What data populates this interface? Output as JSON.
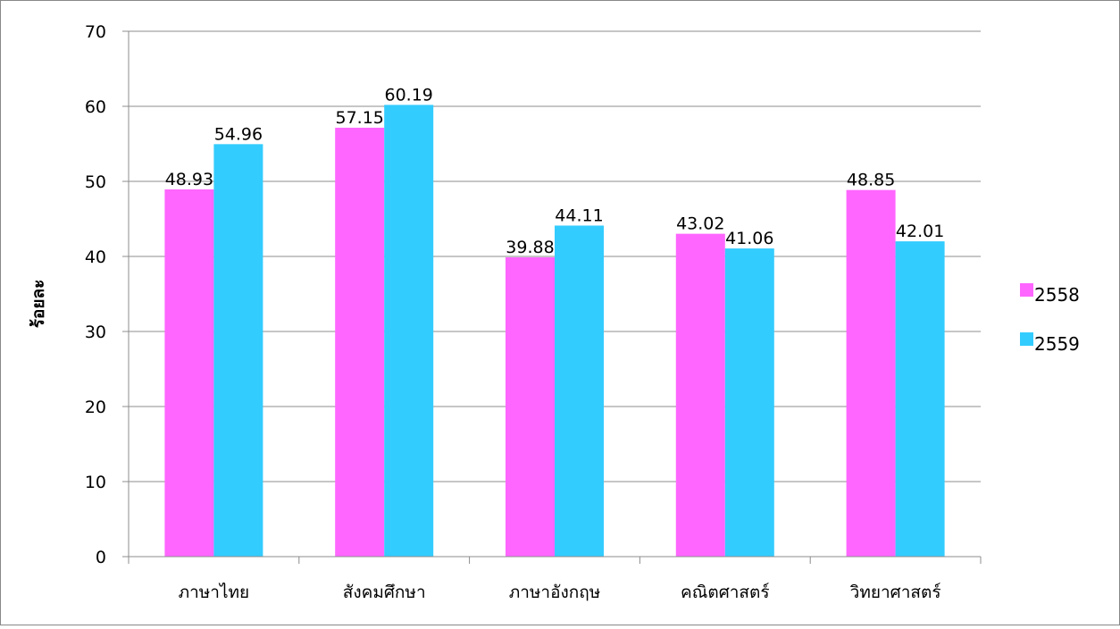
{
  "chart_data": {
    "type": "bar",
    "title": "",
    "xlabel": "",
    "ylabel": "ร้อยละ",
    "ylim": [
      0,
      70
    ],
    "yticks": [
      0,
      10,
      20,
      30,
      40,
      50,
      60,
      70
    ],
    "grid": true,
    "legend": "right",
    "categories": [
      "ภาษาไทย",
      "สังคมศึกษา",
      "ภาษาอังกฤษ",
      "คณิตศาสตร์",
      "วิทยาศาสตร์"
    ],
    "series": [
      {
        "name": "2558",
        "color": "#ff66ff",
        "values": [
          48.93,
          57.15,
          39.88,
          43.02,
          48.85
        ]
      },
      {
        "name": "2559",
        "color": "#33ccff",
        "values": [
          54.96,
          60.19,
          44.11,
          41.06,
          42.01
        ]
      }
    ]
  }
}
